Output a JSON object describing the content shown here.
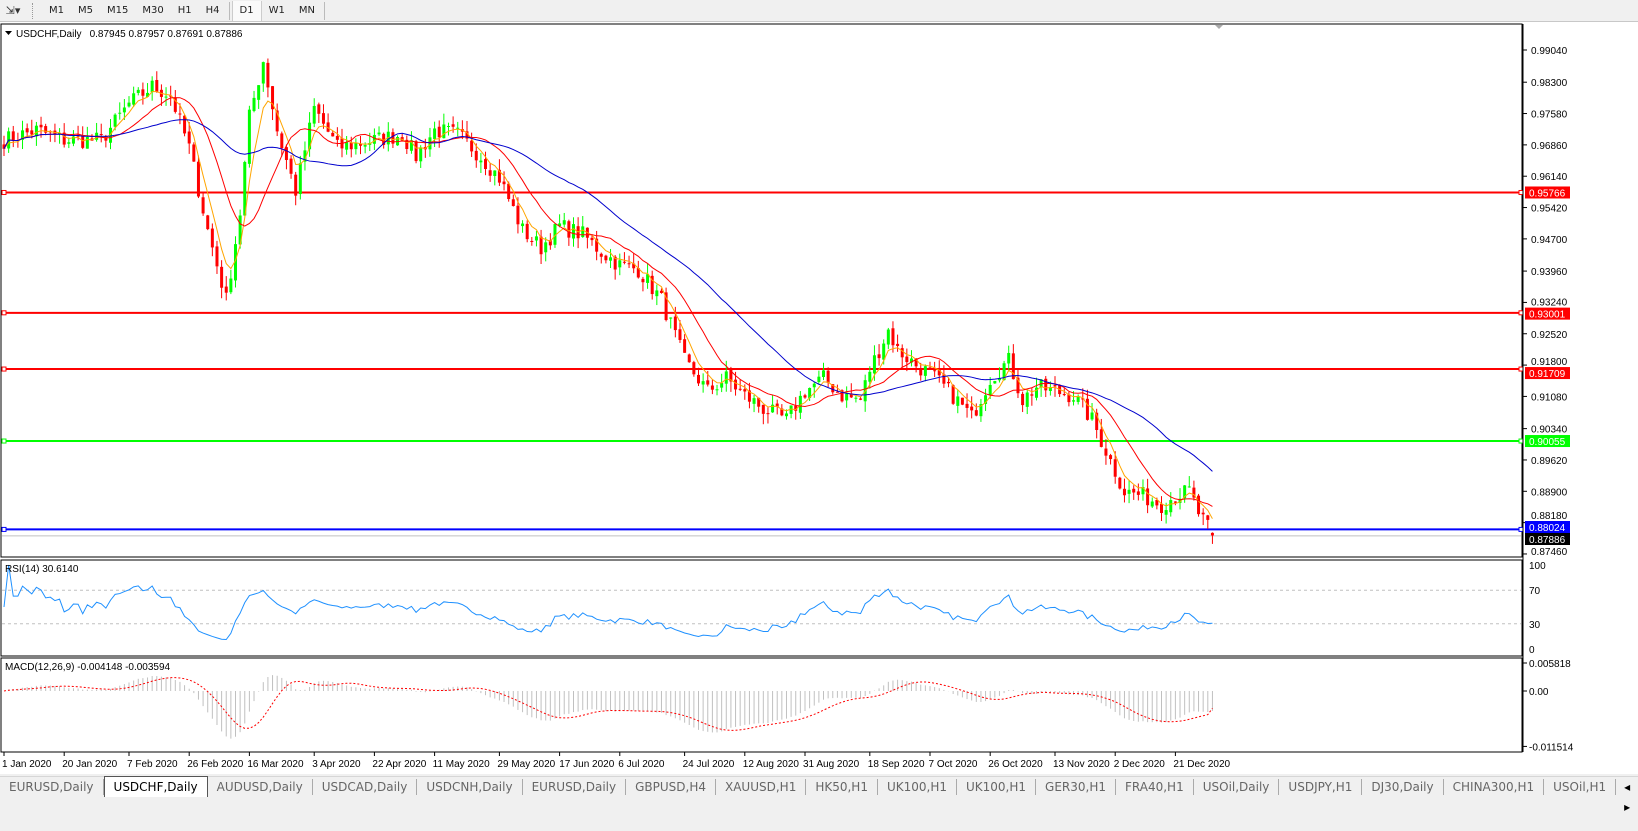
{
  "toolbar": {
    "timeframes": [
      "M1",
      "M5",
      "M15",
      "M30",
      "H1",
      "H4",
      "D1",
      "W1",
      "MN"
    ],
    "active": "D1"
  },
  "chart": {
    "title": "USDCHF,Daily",
    "ohlc": "0.87945 0.87957 0.87691 0.87886"
  },
  "rsi": {
    "label": "RSI(14) 30.6140",
    "ticks": [
      "100",
      "70",
      "30",
      "0"
    ]
  },
  "macd": {
    "label": "MACD(12,26,9) -0.004148 -0.003594",
    "ticks": [
      "0.005818",
      "0.00",
      "-0.011514"
    ]
  },
  "colors": {
    "bull": "#00ff00",
    "bear": "#ff0000",
    "ma_fast": "#ffa500",
    "ma_mid": "#ff0000",
    "ma_slow": "#0000cd",
    "rsi": "#1e90ff",
    "macd_signal": "#ff0000",
    "macd_hist": "#c0c0c0"
  },
  "chart_data": {
    "type": "candlestick",
    "symbol": "USDCHF",
    "timeframe": "Daily",
    "last": {
      "open": 0.87945,
      "high": 0.87957,
      "low": 0.87691,
      "close": 0.87886
    },
    "ylim": [
      0.8746,
      0.9904
    ],
    "y_ticks": [
      "0.99040",
      "0.98300",
      "0.97580",
      "0.96860",
      "0.96140",
      "0.95420",
      "0.94700",
      "0.93960",
      "0.93240",
      "0.92520",
      "0.91800",
      "0.91080",
      "0.90340",
      "0.89620",
      "0.88900",
      "0.88180",
      "0.87460"
    ],
    "x_labels": [
      "1 Jan 2020",
      "20 Jan 2020",
      "7 Feb 2020",
      "26 Feb 2020",
      "16 Mar 2020",
      "3 Apr 2020",
      "22 Apr 2020",
      "11 May 2020",
      "29 May 2020",
      "17 Jun 2020",
      "6 Jul 2020",
      "24 Jul 2020",
      "12 Aug 2020",
      "31 Aug 2020",
      "18 Sep 2020",
      "7 Oct 2020",
      "26 Oct 2020",
      "13 Nov 2020",
      "2 Dec 2020",
      "21 Dec 2020"
    ],
    "hlines": [
      {
        "price": "0.95766",
        "color": "#ff0000"
      },
      {
        "price": "0.93001",
        "color": "#ff0000"
      },
      {
        "price": "0.91709",
        "color": "#ff0000"
      },
      {
        "price": "0.90055",
        "color": "#00ff00"
      },
      {
        "price": "0.88024",
        "color": "#0000ff"
      }
    ],
    "approx_closes": [
      [
        "2020-01-01",
        0.9697
      ],
      [
        "2020-01-10",
        0.972
      ],
      [
        "2020-01-20",
        0.9697
      ],
      [
        "2020-01-30",
        0.9697
      ],
      [
        "2020-02-07",
        0.978
      ],
      [
        "2020-02-14",
        0.982
      ],
      [
        "2020-02-20",
        0.98
      ],
      [
        "2020-02-26",
        0.968
      ],
      [
        "2020-03-03",
        0.949
      ],
      [
        "2020-03-09",
        0.933
      ],
      [
        "2020-03-12",
        0.953
      ],
      [
        "2020-03-16",
        0.975
      ],
      [
        "2020-03-19",
        0.988
      ],
      [
        "2020-03-24",
        0.972
      ],
      [
        "2020-03-30",
        0.958
      ],
      [
        "2020-04-03",
        0.977
      ],
      [
        "2020-04-10",
        0.968
      ],
      [
        "2020-04-17",
        0.969
      ],
      [
        "2020-04-22",
        0.9697
      ],
      [
        "2020-04-30",
        0.971
      ],
      [
        "2020-05-05",
        0.966
      ],
      [
        "2020-05-11",
        0.972
      ],
      [
        "2020-05-18",
        0.971
      ],
      [
        "2020-05-25",
        0.966
      ],
      [
        "2020-05-29",
        0.961
      ],
      [
        "2020-06-05",
        0.949
      ],
      [
        "2020-06-11",
        0.945
      ],
      [
        "2020-06-17",
        0.95
      ],
      [
        "2020-06-24",
        0.948
      ],
      [
        "2020-06-30",
        0.944
      ],
      [
        "2020-07-06",
        0.941
      ],
      [
        "2020-07-10",
        0.94
      ],
      [
        "2020-07-17",
        0.933
      ],
      [
        "2020-07-24",
        0.919
      ],
      [
        "2020-07-31",
        0.912
      ],
      [
        "2020-08-06",
        0.915
      ],
      [
        "2020-08-12",
        0.911
      ],
      [
        "2020-08-18",
        0.908
      ],
      [
        "2020-08-25",
        0.9054
      ],
      [
        "2020-08-31",
        0.912
      ],
      [
        "2020-09-04",
        0.915
      ],
      [
        "2020-09-10",
        0.911
      ],
      [
        "2020-09-16",
        0.91
      ],
      [
        "2020-09-18",
        0.917
      ],
      [
        "2020-09-24",
        0.926
      ],
      [
        "2020-09-28",
        0.9215
      ],
      [
        "2020-10-02",
        0.918
      ],
      [
        "2020-10-07",
        0.916
      ],
      [
        "2020-10-14",
        0.911
      ],
      [
        "2020-10-20",
        0.906
      ],
      [
        "2020-10-26",
        0.915
      ],
      [
        "2020-10-30",
        0.919
      ],
      [
        "2020-11-04",
        0.91
      ],
      [
        "2020-11-09",
        0.913
      ],
      [
        "2020-11-13",
        0.912
      ],
      [
        "2020-11-19",
        0.911
      ],
      [
        "2020-11-25",
        0.9054
      ],
      [
        "2020-12-01",
        0.896
      ],
      [
        "2020-12-04",
        0.889
      ],
      [
        "2020-12-10",
        0.888
      ],
      [
        "2020-12-16",
        0.886
      ],
      [
        "2020-12-21",
        0.888
      ],
      [
        "2020-12-24",
        0.889
      ],
      [
        "2020-12-28",
        0.884
      ],
      [
        "2020-12-31",
        0.87886
      ]
    ],
    "rsi": {
      "period": 14,
      "levels": [
        70,
        30
      ],
      "ylim": [
        0,
        100
      ],
      "last": 30.614
    },
    "macd": {
      "fast": 12,
      "slow": 26,
      "signal": 9,
      "ylim": [
        -0.011514,
        0.005818
      ],
      "last_main": -0.004148,
      "last_signal": -0.003594
    }
  },
  "tabs": [
    "EURUSD,Daily",
    "USDCHF,Daily",
    "AUDUSD,Daily",
    "USDCAD,Daily",
    "USDCNH,Daily",
    "EURUSD,Daily",
    "GBPUSD,H4",
    "XAUUSD,H1",
    "HK50,H1",
    "UK100,H1",
    "UK100,H1",
    "GER30,H1",
    "FRA40,H1",
    "USOil,Daily",
    "USDJPY,H1",
    "DJ30,Daily",
    "CHINA300,H1",
    "USOil,H1"
  ],
  "active_tab": "USDCHF,Daily",
  "tab_nav": "◂ ▸"
}
